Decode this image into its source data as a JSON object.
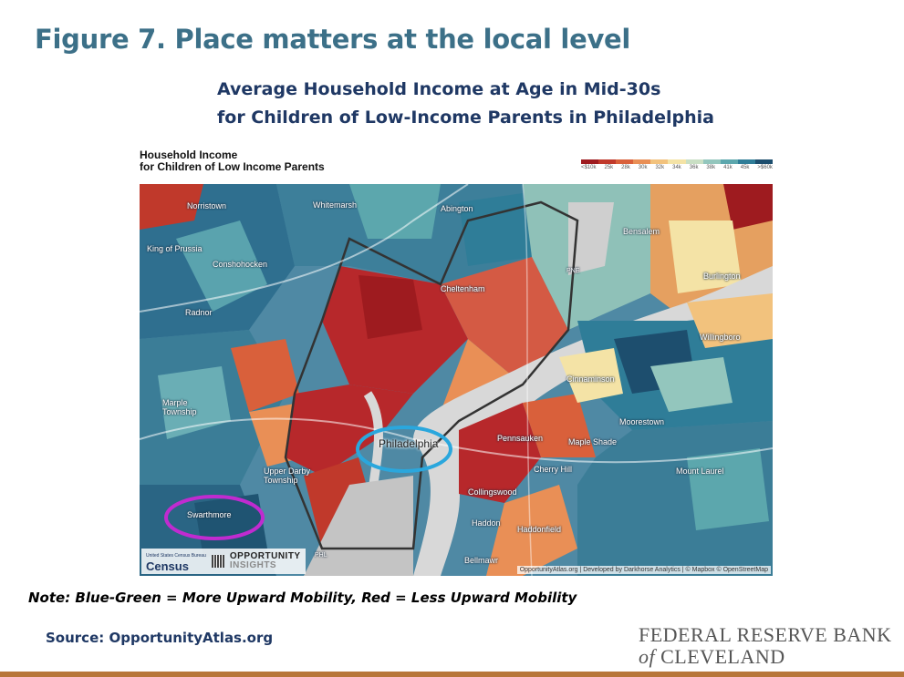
{
  "figure_title": "Figure 7. Place matters at the local level",
  "chart_title_line1": "Average Household Income at Age in Mid-30s",
  "chart_title_line2": "for Children of Low-Income Parents in Philadelphia",
  "map": {
    "legend_title_line1": "Household Income",
    "legend_title_line2": "for Children of Low Income Parents",
    "scale_labels": [
      "<$10k",
      "25k",
      "28k",
      "30k",
      "32k",
      "34k",
      "36k",
      "38k",
      "41k",
      "45k",
      ">$60k"
    ],
    "scale_colors": [
      "#9e1b1f",
      "#c0392b",
      "#d9603b",
      "#e98f56",
      "#f2c27d",
      "#f4e3a6",
      "#c9dfc4",
      "#93c6bd",
      "#5ca7ad",
      "#2f7d98",
      "#1d4e6e"
    ],
    "places": {
      "norristown": "Norristown",
      "king_of_prussia": "King of Prussia",
      "conshohocken": "Conshohocken",
      "radnor": "Radnor",
      "marple": "Marple Township",
      "whitemarsh": "Whitemarsh",
      "abington": "Abington",
      "cheltenham": "Cheltenham",
      "bensalem": "Bensalem",
      "burlington": "Burlington",
      "willingboro": "Willingboro",
      "cinnaminson": "Cinnaminson",
      "moorestown": "Moorestown",
      "philadelphia": "Philadelphia",
      "pennsauken": "Pennsauken",
      "maple_shade": "Maple Shade",
      "cherry_hill": "Cherry Hill",
      "mount_laurel": "Mount Laurel",
      "upper_darby": "Upper Darby Township",
      "collingswood": "Collingswood",
      "haddon": "Haddon",
      "haddonfield": "Haddonfield",
      "swarthmore": "Swarthmore",
      "bellmawr": "Bellmawr",
      "pne": "PNE",
      "phl": "PHL"
    },
    "census_logo": "Census",
    "census_caption": "United States Census Bureau",
    "oi_logo_line1": "OPPORTUNITY",
    "oi_logo_line2": "INSIGHTS",
    "attribution": "OpportunityAtlas.org | Developed by Darkhorse Analytics | © Mapbox © OpenStreetMap",
    "highlight_colors": {
      "center_city": "#2aa7dd",
      "swarthmore": "#c02bd0"
    }
  },
  "note": "Note: Blue-Green = More Upward Mobility, Red = Less Upward Mobility",
  "source": "Source: OpportunityAtlas.org",
  "brand_line1": "FEDERAL RESERVE BANK",
  "brand_line2_of": "of",
  "brand_line2_rest": "CLEVELAND"
}
